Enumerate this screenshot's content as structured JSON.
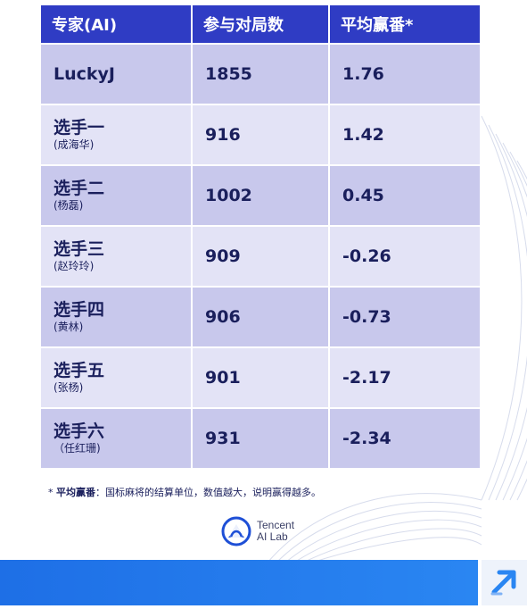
{
  "table": {
    "headers": [
      "专家(AI)",
      "参与对局数",
      "平均赢番*"
    ],
    "rows": [
      {
        "name": "LuckyJ",
        "sub": "",
        "games": "1855",
        "avg": "1.76"
      },
      {
        "name": "选手一",
        "sub": "(成海华)",
        "games": "916",
        "avg": "1.42"
      },
      {
        "name": "选手二",
        "sub": "(杨磊)",
        "games": "1002",
        "avg": "0.45"
      },
      {
        "name": "选手三",
        "sub": "(赵玲玲)",
        "games": "909",
        "avg": "-0.26"
      },
      {
        "name": "选手四",
        "sub": "(黄林)",
        "games": "906",
        "avg": "-0.73"
      },
      {
        "name": "选手五",
        "sub": "(张杨)",
        "games": "901",
        "avg": "-2.17"
      },
      {
        "name": "选手六",
        "sub": "（任红珊)",
        "games": "931",
        "avg": "-2.34"
      }
    ]
  },
  "footnote": {
    "star": "* ",
    "term": "平均赢番",
    "text": "：国标麻将的结算单位，数值越大，说明赢得越多。"
  },
  "logo": {
    "line1": "Tencent",
    "line2": "AI Lab",
    "icon": "tencent-ai-lab-logo-icon"
  },
  "colors": {
    "header": "#2f3cc4",
    "row_dark": "#c8c8ec",
    "row_light": "#e3e3f6",
    "text": "#1a1f5c",
    "bottom_bar": "#1e6fe6"
  },
  "corner_icon": "expand-arrow-icon"
}
